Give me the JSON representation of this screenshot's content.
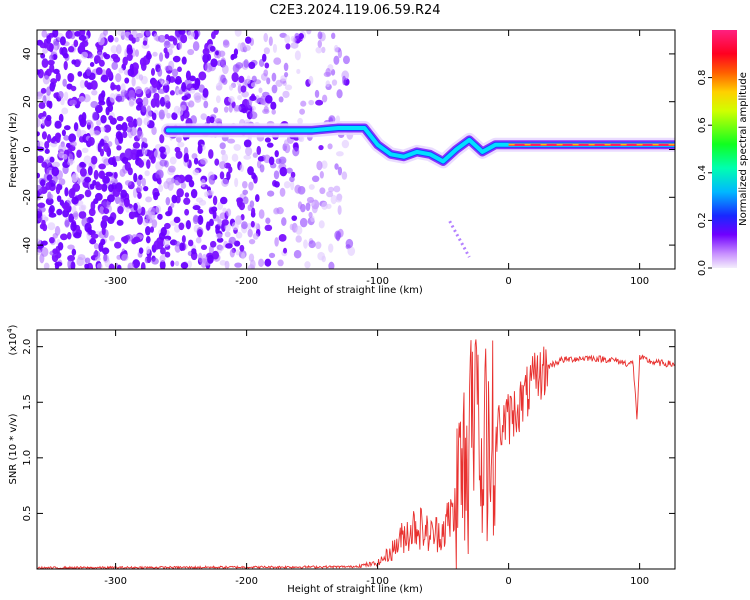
{
  "title": "C2E3.2024.119.06.59.R24",
  "chart_data": [
    {
      "type": "heatmap",
      "xlabel": "Height of straight line (km)",
      "ylabel": "Frequency (Hz)",
      "xlim": [
        -360,
        127
      ],
      "ylim": [
        -50,
        50
      ],
      "xticks": [
        -300,
        -200,
        -100,
        0,
        100
      ],
      "yticks": [
        -40,
        -20,
        0,
        20,
        40
      ],
      "grid": false,
      "colorbar": {
        "label": "Normalized spectral amplitude",
        "range": [
          0,
          1
        ],
        "ticks": [
          0.0,
          0.2,
          0.4,
          0.6,
          0.8
        ],
        "colormap": [
          "#e8e0ff",
          "#b060ff",
          "#7000ff",
          "#2030ff",
          "#00d0ff",
          "#00ff60",
          "#60ff00",
          "#ffff00",
          "#ff8000",
          "#ff0000",
          "#ff00a0"
        ]
      },
      "ridge": {
        "x": [
          -260,
          -220,
          -180,
          -150,
          -130,
          -110,
          -100,
          -90,
          -80,
          -70,
          -60,
          -50,
          -40,
          -30,
          -20,
          -10,
          0,
          20,
          40,
          60,
          80,
          100,
          127
        ],
        "y": [
          8,
          8,
          8,
          8,
          9,
          9,
          2,
          -2,
          -3,
          -1,
          -2,
          -5,
          0,
          4,
          -1,
          2,
          2,
          2,
          2,
          2,
          2,
          2,
          2
        ]
      },
      "noise_extent_x": [
        -360,
        -120
      ],
      "secondary_branch": {
        "x": [
          -45,
          -40,
          -35,
          -30
        ],
        "y": [
          -30,
          -35,
          -40,
          -45
        ]
      }
    },
    {
      "type": "line",
      "xlabel": "Height of straight line (km)",
      "ylabel": "SNR (10 * v/v)",
      "scale_label": "(x10",
      "scale_exp": "4",
      "scale_close": ")",
      "xlim": [
        -360,
        127
      ],
      "ylim": [
        0,
        2.15
      ],
      "xticks": [
        -300,
        -200,
        -100,
        0,
        100
      ],
      "yticks": [
        0.5,
        1.0,
        1.5,
        2.0
      ],
      "color": "#e8302e",
      "grid": false,
      "anchors": {
        "x": [
          -360,
          -120,
          -100,
          -90,
          -80,
          -70,
          -60,
          -50,
          -40,
          -35,
          -30,
          -25,
          -20,
          -15,
          -10,
          0,
          10,
          20,
          30,
          40,
          60,
          80,
          90,
          95,
          98,
          100,
          110,
          127
        ],
        "y": [
          0.01,
          0.02,
          0.05,
          0.15,
          0.3,
          0.4,
          0.3,
          0.35,
          0.55,
          0.9,
          1.0,
          1.2,
          0.9,
          1.1,
          1.25,
          1.35,
          1.5,
          1.7,
          1.82,
          1.88,
          1.9,
          1.88,
          1.85,
          1.85,
          1.35,
          1.9,
          1.86,
          1.84
        ]
      }
    }
  ]
}
